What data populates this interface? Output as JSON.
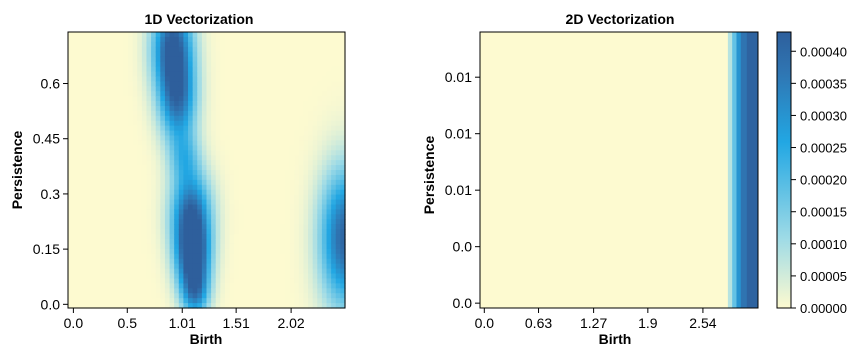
{
  "colors": {
    "low": "#fdfad0",
    "mid": "#9fdbe6",
    "high": "#22a7e3",
    "top": "#2f76b3",
    "dark": "#2e5f9c"
  },
  "chart_data": [
    {
      "type": "heatmap",
      "title": "1D Vectorization",
      "xlabel": "Birth",
      "ylabel": "Persistence",
      "xticks": [
        "0.0",
        "0.5",
        "1.01",
        "1.51",
        "2.02"
      ],
      "xtick_values": [
        0.0,
        0.5,
        1.01,
        1.51,
        2.02
      ],
      "yticks": [
        "0.0",
        "0.15",
        "0.3",
        "0.45",
        "0.6"
      ],
      "ytick_values": [
        0.0,
        0.15,
        0.3,
        0.45,
        0.6
      ],
      "xlim": [
        -0.05,
        2.52
      ],
      "ylim": [
        -0.01,
        0.74
      ],
      "colorbar": false,
      "blobs": [
        {
          "birth": 0.92,
          "persistence": 0.7,
          "sx": 0.13,
          "sy": 0.09,
          "value": 1.0
        },
        {
          "birth": 0.97,
          "persistence": 0.55,
          "sx": 0.12,
          "sy": 0.08,
          "value": 0.75
        },
        {
          "birth": 1.03,
          "persistence": 0.4,
          "sx": 0.1,
          "sy": 0.05,
          "value": 0.35
        },
        {
          "birth": 1.09,
          "persistence": 0.25,
          "sx": 0.13,
          "sy": 0.08,
          "value": 0.85
        },
        {
          "birth": 1.11,
          "persistence": 0.13,
          "sx": 0.11,
          "sy": 0.07,
          "value": 1.0
        },
        {
          "birth": 1.13,
          "persistence": 0.03,
          "sx": 0.09,
          "sy": 0.05,
          "value": 0.6
        },
        {
          "birth": 2.52,
          "persistence": 0.18,
          "sx": 0.16,
          "sy": 0.13,
          "value": 0.95
        }
      ]
    },
    {
      "type": "heatmap",
      "title": "2D Vectorization",
      "xlabel": "Birth",
      "ylabel": "Persistence",
      "xticks": [
        "0.0",
        "0.63",
        "1.27",
        "1.9",
        "2.54"
      ],
      "xtick_values": [
        0.0,
        0.63,
        1.27,
        1.9,
        2.54
      ],
      "yticks": [
        "0.0",
        "0.0",
        "0.01",
        "0.01",
        "0.01"
      ],
      "ytick_values": [
        0.0,
        0.0035,
        0.007,
        0.0105,
        0.014
      ],
      "xlim": [
        -0.05,
        3.18
      ],
      "ylim": [
        -0.0003,
        0.0168
      ],
      "colorbar": true,
      "colorbar_ticks": [
        "0.00000",
        "0.00005",
        "0.00010",
        "0.00015",
        "0.00020",
        "0.00025",
        "0.00030",
        "0.00035",
        "0.00040"
      ],
      "colorbar_tick_values": [
        0.0,
        5e-05,
        0.0001,
        0.00015,
        0.0002,
        0.00025,
        0.0003,
        0.00035,
        0.0004
      ],
      "colorbar_range": [
        0.0,
        0.00043
      ],
      "columns": [
        {
          "birth_from": 2.83,
          "birth_to": 2.88,
          "value": 8e-05
        },
        {
          "birth_from": 2.88,
          "birth_to": 2.93,
          "value": 0.00018
        },
        {
          "birth_from": 2.93,
          "birth_to": 2.98,
          "value": 0.0003
        },
        {
          "birth_from": 2.98,
          "birth_to": 3.05,
          "value": 0.00037
        },
        {
          "birth_from": 3.05,
          "birth_to": 3.18,
          "value": 0.00042
        }
      ]
    }
  ]
}
